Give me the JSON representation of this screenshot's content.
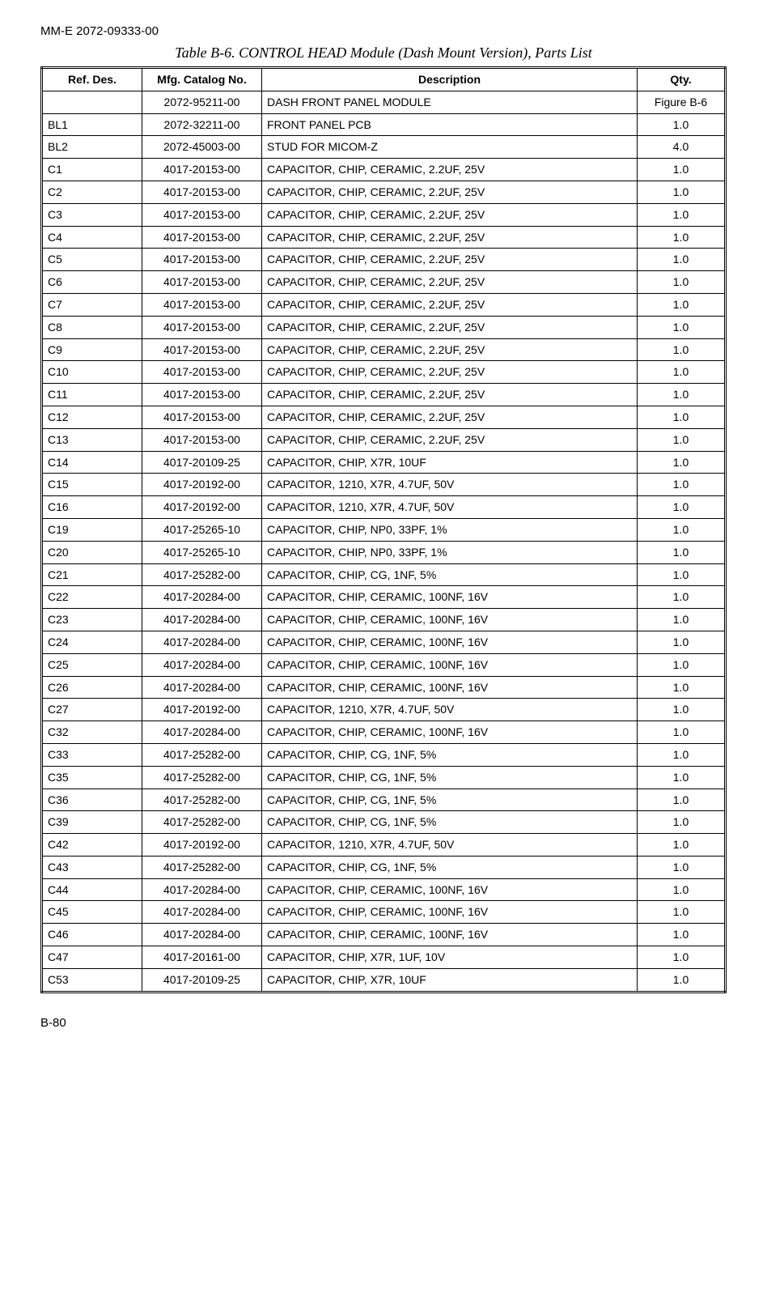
{
  "header": {
    "doc_code": "MM-E 2072-09333-00",
    "table_title": "Table B-6. CONTROL HEAD Module (Dash Mount Version), Parts List"
  },
  "table": {
    "columns": {
      "ref": "Ref. Des.",
      "mfg": "Mfg. Catalog No.",
      "desc": "Description",
      "qty": "Qty."
    },
    "rows": [
      {
        "ref": "",
        "mfg": "2072-95211-00",
        "desc": "DASH FRONT PANEL MODULE",
        "qty": "Figure B-6"
      },
      {
        "ref": "BL1",
        "mfg": "2072-32211-00",
        "desc": "FRONT PANEL PCB",
        "qty": "1.0"
      },
      {
        "ref": "BL2",
        "mfg": "2072-45003-00",
        "desc": "STUD FOR MICOM-Z",
        "qty": "4.0"
      },
      {
        "ref": "C1",
        "mfg": "4017-20153-00",
        "desc": "CAPACITOR, CHIP, CERAMIC, 2.2UF, 25V",
        "qty": "1.0"
      },
      {
        "ref": "C2",
        "mfg": "4017-20153-00",
        "desc": "CAPACITOR, CHIP, CERAMIC, 2.2UF, 25V",
        "qty": "1.0"
      },
      {
        "ref": "C3",
        "mfg": "4017-20153-00",
        "desc": "CAPACITOR, CHIP, CERAMIC, 2.2UF, 25V",
        "qty": "1.0"
      },
      {
        "ref": "C4",
        "mfg": "4017-20153-00",
        "desc": "CAPACITOR, CHIP, CERAMIC, 2.2UF, 25V",
        "qty": "1.0"
      },
      {
        "ref": "C5",
        "mfg": "4017-20153-00",
        "desc": "CAPACITOR, CHIP, CERAMIC, 2.2UF, 25V",
        "qty": "1.0"
      },
      {
        "ref": "C6",
        "mfg": "4017-20153-00",
        "desc": "CAPACITOR, CHIP, CERAMIC, 2.2UF, 25V",
        "qty": "1.0"
      },
      {
        "ref": "C7",
        "mfg": "4017-20153-00",
        "desc": "CAPACITOR, CHIP, CERAMIC, 2.2UF, 25V",
        "qty": "1.0"
      },
      {
        "ref": "C8",
        "mfg": "4017-20153-00",
        "desc": "CAPACITOR, CHIP, CERAMIC, 2.2UF, 25V",
        "qty": "1.0"
      },
      {
        "ref": "C9",
        "mfg": "4017-20153-00",
        "desc": "CAPACITOR, CHIP, CERAMIC, 2.2UF, 25V",
        "qty": "1.0"
      },
      {
        "ref": "C10",
        "mfg": "4017-20153-00",
        "desc": "CAPACITOR, CHIP, CERAMIC, 2.2UF, 25V",
        "qty": "1.0"
      },
      {
        "ref": "C11",
        "mfg": "4017-20153-00",
        "desc": "CAPACITOR, CHIP, CERAMIC, 2.2UF, 25V",
        "qty": "1.0"
      },
      {
        "ref": "C12",
        "mfg": "4017-20153-00",
        "desc": "CAPACITOR, CHIP, CERAMIC, 2.2UF, 25V",
        "qty": "1.0"
      },
      {
        "ref": "C13",
        "mfg": "4017-20153-00",
        "desc": "CAPACITOR, CHIP, CERAMIC, 2.2UF, 25V",
        "qty": "1.0"
      },
      {
        "ref": "C14",
        "mfg": "4017-20109-25",
        "desc": "CAPACITOR, CHIP, X7R, 10UF",
        "qty": "1.0"
      },
      {
        "ref": "C15",
        "mfg": "4017-20192-00",
        "desc": "CAPACITOR, 1210, X7R, 4.7UF, 50V",
        "qty": "1.0"
      },
      {
        "ref": "C16",
        "mfg": "4017-20192-00",
        "desc": "CAPACITOR, 1210, X7R, 4.7UF, 50V",
        "qty": "1.0"
      },
      {
        "ref": "C19",
        "mfg": "4017-25265-10",
        "desc": "CAPACITOR, CHIP, NP0, 33PF, 1%",
        "qty": "1.0"
      },
      {
        "ref": "C20",
        "mfg": "4017-25265-10",
        "desc": "CAPACITOR, CHIP, NP0, 33PF, 1%",
        "qty": "1.0"
      },
      {
        "ref": "C21",
        "mfg": "4017-25282-00",
        "desc": "CAPACITOR, CHIP, CG, 1NF, 5%",
        "qty": "1.0"
      },
      {
        "ref": "C22",
        "mfg": "4017-20284-00",
        "desc": "CAPACITOR, CHIP, CERAMIC, 100NF, 16V",
        "qty": "1.0"
      },
      {
        "ref": "C23",
        "mfg": "4017-20284-00",
        "desc": "CAPACITOR, CHIP, CERAMIC, 100NF, 16V",
        "qty": "1.0"
      },
      {
        "ref": "C24",
        "mfg": "4017-20284-00",
        "desc": "CAPACITOR, CHIP, CERAMIC, 100NF, 16V",
        "qty": "1.0"
      },
      {
        "ref": "C25",
        "mfg": "4017-20284-00",
        "desc": "CAPACITOR, CHIP, CERAMIC, 100NF, 16V",
        "qty": "1.0"
      },
      {
        "ref": "C26",
        "mfg": "4017-20284-00",
        "desc": "CAPACITOR, CHIP, CERAMIC, 100NF, 16V",
        "qty": "1.0"
      },
      {
        "ref": "C27",
        "mfg": "4017-20192-00",
        "desc": "CAPACITOR, 1210, X7R, 4.7UF, 50V",
        "qty": "1.0"
      },
      {
        "ref": "C32",
        "mfg": "4017-20284-00",
        "desc": "CAPACITOR, CHIP, CERAMIC, 100NF, 16V",
        "qty": "1.0"
      },
      {
        "ref": "C33",
        "mfg": "4017-25282-00",
        "desc": "CAPACITOR, CHIP, CG, 1NF, 5%",
        "qty": "1.0"
      },
      {
        "ref": "C35",
        "mfg": "4017-25282-00",
        "desc": "CAPACITOR, CHIP, CG, 1NF, 5%",
        "qty": "1.0"
      },
      {
        "ref": "C36",
        "mfg": "4017-25282-00",
        "desc": "CAPACITOR, CHIP, CG, 1NF, 5%",
        "qty": "1.0"
      },
      {
        "ref": "C39",
        "mfg": "4017-25282-00",
        "desc": "CAPACITOR, CHIP, CG, 1NF, 5%",
        "qty": "1.0"
      },
      {
        "ref": "C42",
        "mfg": "4017-20192-00",
        "desc": "CAPACITOR, 1210, X7R, 4.7UF, 50V",
        "qty": "1.0"
      },
      {
        "ref": "C43",
        "mfg": "4017-25282-00",
        "desc": "CAPACITOR, CHIP, CG, 1NF, 5%",
        "qty": "1.0"
      },
      {
        "ref": "C44",
        "mfg": "4017-20284-00",
        "desc": "CAPACITOR, CHIP, CERAMIC, 100NF, 16V",
        "qty": "1.0"
      },
      {
        "ref": "C45",
        "mfg": "4017-20284-00",
        "desc": "CAPACITOR, CHIP, CERAMIC, 100NF, 16V",
        "qty": "1.0"
      },
      {
        "ref": "C46",
        "mfg": "4017-20284-00",
        "desc": "CAPACITOR, CHIP, CERAMIC, 100NF, 16V",
        "qty": "1.0"
      },
      {
        "ref": "C47",
        "mfg": "4017-20161-00",
        "desc": "CAPACITOR, CHIP, X7R, 1UF, 10V",
        "qty": "1.0"
      },
      {
        "ref": "C53",
        "mfg": "4017-20109-25",
        "desc": "CAPACITOR, CHIP, X7R, 10UF",
        "qty": "1.0"
      }
    ]
  },
  "footer": {
    "page_num": "B-80"
  }
}
